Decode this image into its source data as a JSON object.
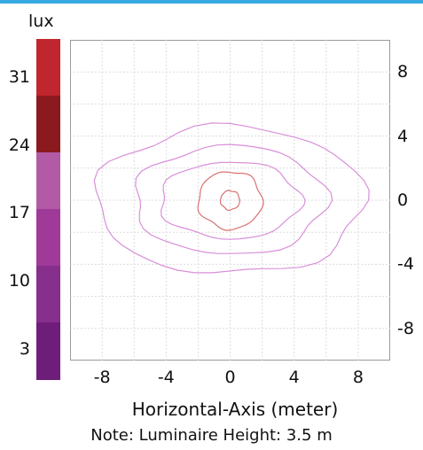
{
  "colors": {
    "top_bar": "#36a9e1",
    "grid": "#dcdcdc",
    "contour": "#d98fd9",
    "contour_inner": "#d97070",
    "colorbar_segments": [
      "#c0262d",
      "#8b1a1e",
      "#b25aa6",
      "#a03a98",
      "#862f8c",
      "#6e1e7a"
    ]
  },
  "chart_data": {
    "type": "contour",
    "unit_label": "lux",
    "xlabel": "Horizontal-Axis (meter)",
    "ylabel": "",
    "xlim": [
      -10,
      10
    ],
    "ylim": [
      -10,
      10
    ],
    "x_ticks": [
      "-8",
      "-4",
      "0",
      "4",
      "8"
    ],
    "x_tick_values": [
      -8,
      -4,
      0,
      4,
      8
    ],
    "y_ticks": [
      "8",
      "4",
      "0",
      "-4",
      "-8"
    ],
    "y_tick_values": [
      8,
      4,
      0,
      -4,
      -8
    ],
    "colorbar_ticks": [
      "31",
      "24",
      "17",
      "10",
      "3"
    ],
    "colorbar_tick_values": [
      31,
      24,
      17,
      10,
      3
    ],
    "colorbar_range": [
      0,
      35
    ],
    "grid": true,
    "contours": [
      {
        "a": 8.4,
        "b": 4.6,
        "color_key": "contour"
      },
      {
        "a": 6.0,
        "b": 3.4,
        "color_key": "contour"
      },
      {
        "a": 4.4,
        "b": 2.4,
        "color_key": "contour"
      },
      {
        "a": 2.0,
        "b": 1.8,
        "color_key": "contour_inner"
      },
      {
        "a": 0.6,
        "b": 0.6,
        "color_key": "contour_inner"
      }
    ],
    "note": "Note: Luminaire Height: 3.5 m"
  }
}
